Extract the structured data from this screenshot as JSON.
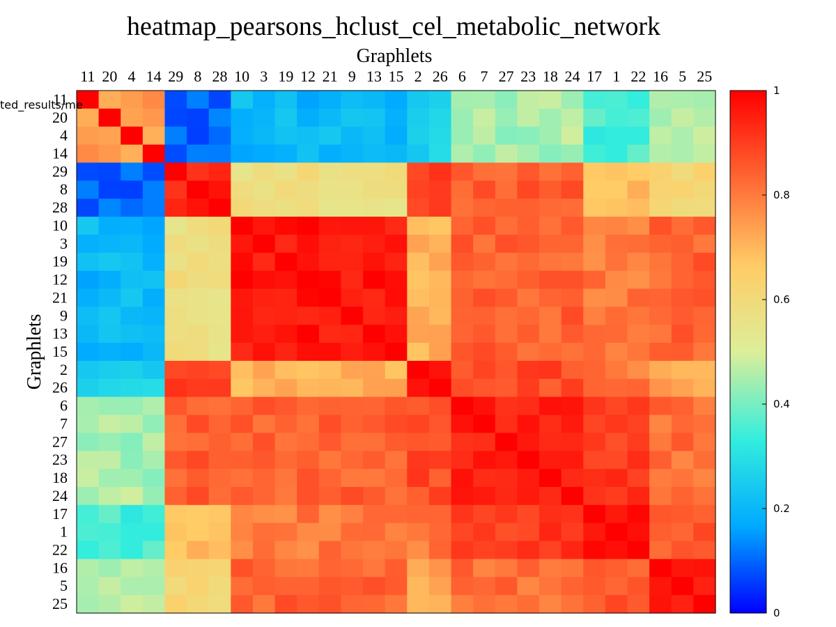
{
  "chart_data": {
    "type": "heatmap",
    "title": "heatmap_pearsons_hclust_cel_metabolic_network",
    "xlabel": "Graphlets",
    "ylabel": "Graphlets",
    "corner_label": "ted_results/me",
    "labels": [
      "11",
      "20",
      "4",
      "14",
      "29",
      "8",
      "28",
      "10",
      "3",
      "19",
      "12",
      "21",
      "9",
      "13",
      "15",
      "2",
      "26",
      "6",
      "7",
      "27",
      "23",
      "18",
      "24",
      "17",
      "1",
      "22",
      "16",
      "5",
      "25"
    ],
    "colorbar": {
      "min": 0,
      "max": 1,
      "ticks": [
        "0",
        "0.2",
        "0.4",
        "0.6",
        "0.8",
        "1"
      ],
      "colors": [
        "#0000ff",
        "#00aaff",
        "#33eedd",
        "#ddee99",
        "#ffcc66",
        "#ff6633",
        "#ff0000"
      ]
    },
    "groups": [
      {
        "labels": [
          "11",
          "20",
          "4",
          "14"
        ],
        "start": 0,
        "end": 3
      },
      {
        "labels": [
          "29",
          "8",
          "28"
        ],
        "start": 4,
        "end": 6
      },
      {
        "labels": [
          "10",
          "3",
          "19",
          "12",
          "21",
          "9",
          "13",
          "15"
        ],
        "start": 7,
        "end": 14
      },
      {
        "labels": [
          "2",
          "26"
        ],
        "start": 15,
        "end": 16
      },
      {
        "labels": [
          "6",
          "7",
          "27",
          "23",
          "18",
          "24"
        ],
        "start": 17,
        "end": 22
      },
      {
        "labels": [
          "17",
          "1",
          "22"
        ],
        "start": 23,
        "end": 25
      },
      {
        "labels": [
          "16",
          "5",
          "25"
        ],
        "start": 26,
        "end": 28
      }
    ],
    "block_values": [
      [
        0.75,
        0.1,
        0.2,
        0.25,
        0.45,
        0.35,
        0.45
      ],
      [
        0.1,
        0.95,
        0.58,
        0.88,
        0.85,
        0.7,
        0.62
      ],
      [
        0.2,
        0.58,
        0.97,
        0.7,
        0.84,
        0.8,
        0.84
      ],
      [
        0.25,
        0.88,
        0.7,
        0.97,
        0.88,
        0.8,
        0.72
      ],
      [
        0.45,
        0.85,
        0.84,
        0.88,
        0.95,
        0.9,
        0.82
      ],
      [
        0.35,
        0.7,
        0.8,
        0.8,
        0.9,
        0.96,
        0.85
      ],
      [
        0.45,
        0.62,
        0.84,
        0.72,
        0.82,
        0.85,
        0.96
      ]
    ]
  }
}
